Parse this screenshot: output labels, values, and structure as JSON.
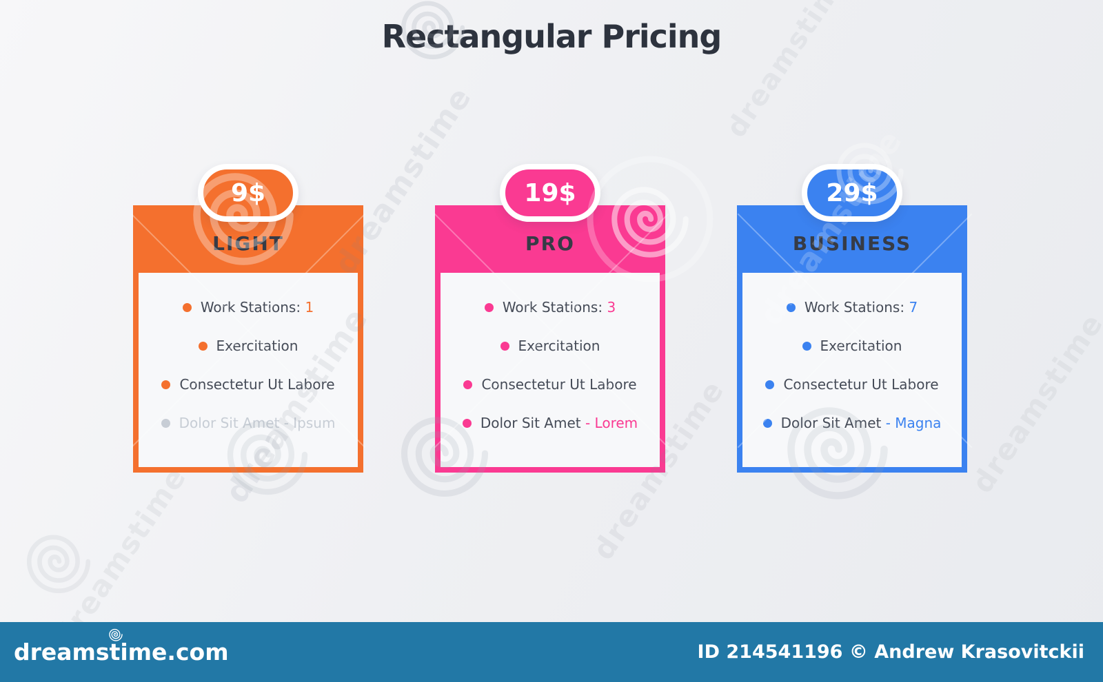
{
  "title": "Rectangular Pricing",
  "watermark": {
    "text": "dreamstime"
  },
  "plans": [
    {
      "name": "LIGHT",
      "price": "9$",
      "accent": "#f4702e",
      "features": [
        {
          "label": "Work Stations: ",
          "accent_text": "1",
          "muted": false
        },
        {
          "label": "Exercitation",
          "accent_text": "",
          "muted": false
        },
        {
          "label": "Consectetur Ut Labore",
          "accent_text": "",
          "muted": false
        },
        {
          "label": "Dolor Sit Amet - Ipsum",
          "accent_text": "",
          "muted": true
        }
      ]
    },
    {
      "name": "PRO",
      "price": "19$",
      "accent": "#fa3a92",
      "features": [
        {
          "label": "Work Stations: ",
          "accent_text": "3",
          "muted": false
        },
        {
          "label": "Exercitation",
          "accent_text": "",
          "muted": false
        },
        {
          "label": "Consectetur Ut Labore",
          "accent_text": "",
          "muted": false
        },
        {
          "label": "Dolor Sit Amet ",
          "accent_text": "- Lorem",
          "muted": false
        }
      ]
    },
    {
      "name": "BUSINESS",
      "price": "29$",
      "accent": "#3b82f0",
      "features": [
        {
          "label": "Work Stations: ",
          "accent_text": "7",
          "muted": false
        },
        {
          "label": "Exercitation",
          "accent_text": "",
          "muted": false
        },
        {
          "label": "Consectetur Ut Labore",
          "accent_text": "",
          "muted": false
        },
        {
          "label": "Dolor Sit Amet ",
          "accent_text": "- Magna",
          "muted": false
        }
      ]
    }
  ],
  "footer": {
    "logo": "dreamstime.com",
    "credit": "ID 214541196 © Andrew Krasovitckii"
  }
}
